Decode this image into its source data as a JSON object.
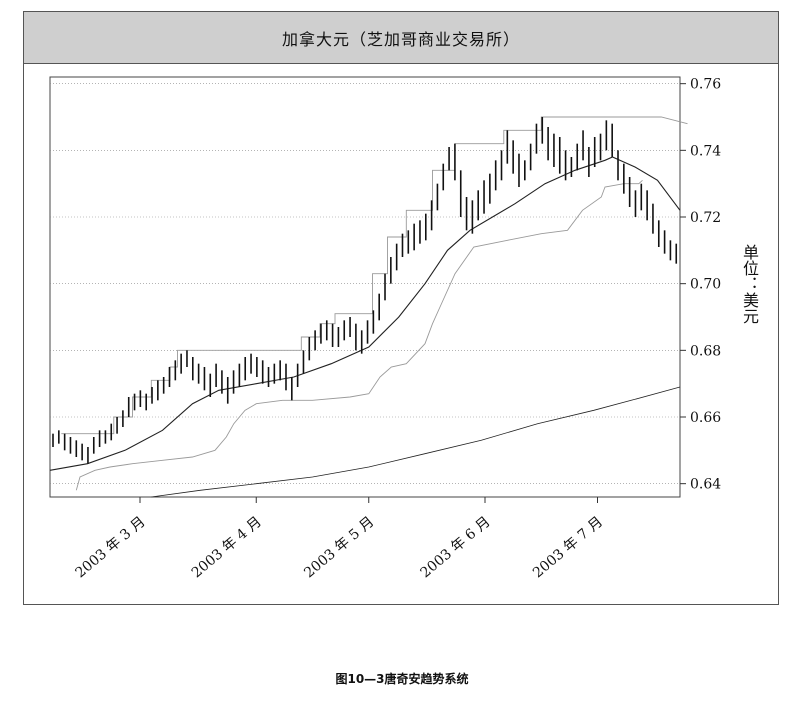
{
  "caption": "图10—3唐奇安趋势系统",
  "chart_data": {
    "type": "candlestick",
    "title": "加拿大元（芝加哥商业交易所）",
    "ylabel": "单位：美元",
    "xlabel": "",
    "y_axis_position": "right",
    "ylim": [
      0.636,
      0.762
    ],
    "y_ticks": [
      0.64,
      0.66,
      0.68,
      0.7,
      0.72,
      0.74,
      0.76
    ],
    "y_tick_labels": [
      "0.64",
      "0.66",
      "0.68",
      "0.70",
      "0.72",
      "0.74",
      "0.76"
    ],
    "grid": "horizontal-dotted",
    "x_labels": [
      {
        "label": "2003 年 3 月",
        "day": 24
      },
      {
        "label": "2003 年 4 月",
        "day": 55
      },
      {
        "label": "2003 年 5 月",
        "day": 85
      },
      {
        "label": "2003 年 6 月",
        "day": 116
      },
      {
        "label": "2003 年 7 月",
        "day": 146
      }
    ],
    "x_range_days": [
      0,
      168
    ],
    "bars_hl": [
      [
        0.655,
        0.651
      ],
      [
        0.656,
        0.652
      ],
      [
        0.655,
        0.65
      ],
      [
        0.654,
        0.649
      ],
      [
        0.653,
        0.648
      ],
      [
        0.652,
        0.647
      ],
      [
        0.651,
        0.646
      ],
      [
        0.654,
        0.649
      ],
      [
        0.656,
        0.651
      ],
      [
        0.656,
        0.652
      ],
      [
        0.658,
        0.653
      ],
      [
        0.66,
        0.655
      ],
      [
        0.662,
        0.657
      ],
      [
        0.666,
        0.66
      ],
      [
        0.667,
        0.662
      ],
      [
        0.668,
        0.663
      ],
      [
        0.667,
        0.662
      ],
      [
        0.669,
        0.664
      ],
      [
        0.671,
        0.665
      ],
      [
        0.672,
        0.667
      ],
      [
        0.675,
        0.669
      ],
      [
        0.677,
        0.671
      ],
      [
        0.679,
        0.673
      ],
      [
        0.68,
        0.675
      ],
      [
        0.678,
        0.671
      ],
      [
        0.676,
        0.67
      ],
      [
        0.675,
        0.668
      ],
      [
        0.673,
        0.666
      ],
      [
        0.676,
        0.669
      ],
      [
        0.674,
        0.667
      ],
      [
        0.672,
        0.664
      ],
      [
        0.674,
        0.667
      ],
      [
        0.676,
        0.669
      ],
      [
        0.678,
        0.671
      ],
      [
        0.679,
        0.673
      ],
      [
        0.678,
        0.672
      ],
      [
        0.677,
        0.67
      ],
      [
        0.675,
        0.669
      ],
      [
        0.676,
        0.67
      ],
      [
        0.677,
        0.671
      ],
      [
        0.676,
        0.668
      ],
      [
        0.672,
        0.665
      ],
      [
        0.676,
        0.669
      ],
      [
        0.68,
        0.673
      ],
      [
        0.684,
        0.677
      ],
      [
        0.686,
        0.68
      ],
      [
        0.688,
        0.682
      ],
      [
        0.689,
        0.683
      ],
      [
        0.688,
        0.681
      ],
      [
        0.687,
        0.681
      ],
      [
        0.689,
        0.683
      ],
      [
        0.69,
        0.684
      ],
      [
        0.688,
        0.68
      ],
      [
        0.686,
        0.679
      ],
      [
        0.689,
        0.682
      ],
      [
        0.692,
        0.685
      ],
      [
        0.697,
        0.689
      ],
      [
        0.703,
        0.695
      ],
      [
        0.708,
        0.7
      ],
      [
        0.712,
        0.704
      ],
      [
        0.715,
        0.708
      ],
      [
        0.716,
        0.709
      ],
      [
        0.718,
        0.71
      ],
      [
        0.719,
        0.712
      ],
      [
        0.721,
        0.713
      ],
      [
        0.725,
        0.716
      ],
      [
        0.73,
        0.722
      ],
      [
        0.736,
        0.728
      ],
      [
        0.741,
        0.734
      ],
      [
        0.742,
        0.731
      ],
      [
        0.734,
        0.72
      ],
      [
        0.726,
        0.716
      ],
      [
        0.725,
        0.715
      ],
      [
        0.728,
        0.719
      ],
      [
        0.731,
        0.721
      ],
      [
        0.733,
        0.724
      ],
      [
        0.737,
        0.728
      ],
      [
        0.74,
        0.731
      ],
      [
        0.746,
        0.736
      ],
      [
        0.743,
        0.733
      ],
      [
        0.739,
        0.729
      ],
      [
        0.737,
        0.731
      ],
      [
        0.742,
        0.734
      ],
      [
        0.748,
        0.739
      ],
      [
        0.75,
        0.742
      ],
      [
        0.747,
        0.737
      ],
      [
        0.745,
        0.735
      ],
      [
        0.744,
        0.733
      ],
      [
        0.74,
        0.731
      ],
      [
        0.738,
        0.732
      ],
      [
        0.742,
        0.734
      ],
      [
        0.746,
        0.737
      ],
      [
        0.741,
        0.732
      ],
      [
        0.744,
        0.735
      ],
      [
        0.745,
        0.737
      ],
      [
        0.749,
        0.74
      ],
      [
        0.748,
        0.738
      ],
      [
        0.74,
        0.731
      ],
      [
        0.736,
        0.727
      ],
      [
        0.732,
        0.723
      ],
      [
        0.728,
        0.72
      ],
      [
        0.73,
        0.722
      ],
      [
        0.728,
        0.719
      ],
      [
        0.724,
        0.715
      ],
      [
        0.719,
        0.711
      ],
      [
        0.716,
        0.709
      ],
      [
        0.713,
        0.707
      ],
      [
        0.712,
        0.706
      ]
    ],
    "series": [
      {
        "style": "solid",
        "points": [
          [
            0,
            0.644
          ],
          [
            10,
            0.646
          ],
          [
            20,
            0.65
          ],
          [
            30,
            0.656
          ],
          [
            38,
            0.664
          ],
          [
            45,
            0.668
          ],
          [
            55,
            0.67
          ],
          [
            65,
            0.672
          ],
          [
            75,
            0.676
          ],
          [
            85,
            0.681
          ],
          [
            93,
            0.69
          ],
          [
            100,
            0.7
          ],
          [
            106,
            0.71
          ],
          [
            112,
            0.716
          ],
          [
            118,
            0.72
          ],
          [
            124,
            0.724
          ],
          [
            132,
            0.73
          ],
          [
            140,
            0.734
          ],
          [
            148,
            0.737
          ],
          [
            150,
            0.738
          ],
          [
            156,
            0.735
          ],
          [
            162,
            0.731
          ],
          [
            168,
            0.722
          ]
        ]
      },
      {
        "style": "thin-gray",
        "points": [
          [
            3,
            0.655
          ],
          [
            17,
            0.655
          ],
          [
            17,
            0.66
          ],
          [
            22,
            0.66
          ],
          [
            22,
            0.666
          ],
          [
            27,
            0.666
          ],
          [
            27,
            0.671
          ],
          [
            32,
            0.671
          ],
          [
            32,
            0.675
          ],
          [
            34,
            0.675
          ],
          [
            34,
            0.68
          ],
          [
            67,
            0.68
          ],
          [
            67,
            0.684
          ],
          [
            72,
            0.684
          ],
          [
            72,
            0.688
          ],
          [
            76,
            0.688
          ],
          [
            76,
            0.691
          ],
          [
            86,
            0.691
          ],
          [
            86,
            0.703
          ],
          [
            90,
            0.703
          ],
          [
            90,
            0.714
          ],
          [
            95,
            0.714
          ],
          [
            95,
            0.722
          ],
          [
            102,
            0.722
          ],
          [
            102,
            0.734
          ],
          [
            108,
            0.734
          ],
          [
            108,
            0.742
          ],
          [
            121,
            0.742
          ],
          [
            121,
            0.746
          ],
          [
            131,
            0.746
          ],
          [
            131,
            0.75
          ],
          [
            163,
            0.75
          ],
          [
            170,
            0.748
          ]
        ]
      },
      {
        "style": "thin-gray",
        "points": [
          [
            7,
            0.638
          ],
          [
            8,
            0.642
          ],
          [
            12,
            0.644
          ],
          [
            16,
            0.645
          ],
          [
            22,
            0.646
          ],
          [
            30,
            0.647
          ],
          [
            38,
            0.648
          ],
          [
            44,
            0.65
          ],
          [
            47,
            0.654
          ],
          [
            49,
            0.658
          ],
          [
            52,
            0.662
          ],
          [
            55,
            0.664
          ],
          [
            62,
            0.665
          ],
          [
            70,
            0.665
          ],
          [
            80,
            0.666
          ],
          [
            85,
            0.667
          ],
          [
            88,
            0.672
          ],
          [
            91,
            0.675
          ],
          [
            95,
            0.676
          ],
          [
            100,
            0.682
          ],
          [
            102,
            0.688
          ],
          [
            104,
            0.693
          ],
          [
            108,
            0.703
          ],
          [
            113,
            0.711
          ],
          [
            122,
            0.713
          ],
          [
            131,
            0.715
          ],
          [
            138,
            0.716
          ],
          [
            142,
            0.722
          ],
          [
            147,
            0.726
          ],
          [
            148,
            0.729
          ],
          [
            153,
            0.73
          ],
          [
            157,
            0.73
          ],
          [
            158,
            0.731
          ]
        ]
      },
      {
        "style": "solid-thin",
        "points": [
          [
            27,
            0.636
          ],
          [
            40,
            0.638
          ],
          [
            55,
            0.64
          ],
          [
            70,
            0.642
          ],
          [
            85,
            0.645
          ],
          [
            100,
            0.649
          ],
          [
            115,
            0.653
          ],
          [
            130,
            0.658
          ],
          [
            145,
            0.662
          ],
          [
            155,
            0.665
          ],
          [
            168,
            0.669
          ]
        ]
      }
    ]
  }
}
